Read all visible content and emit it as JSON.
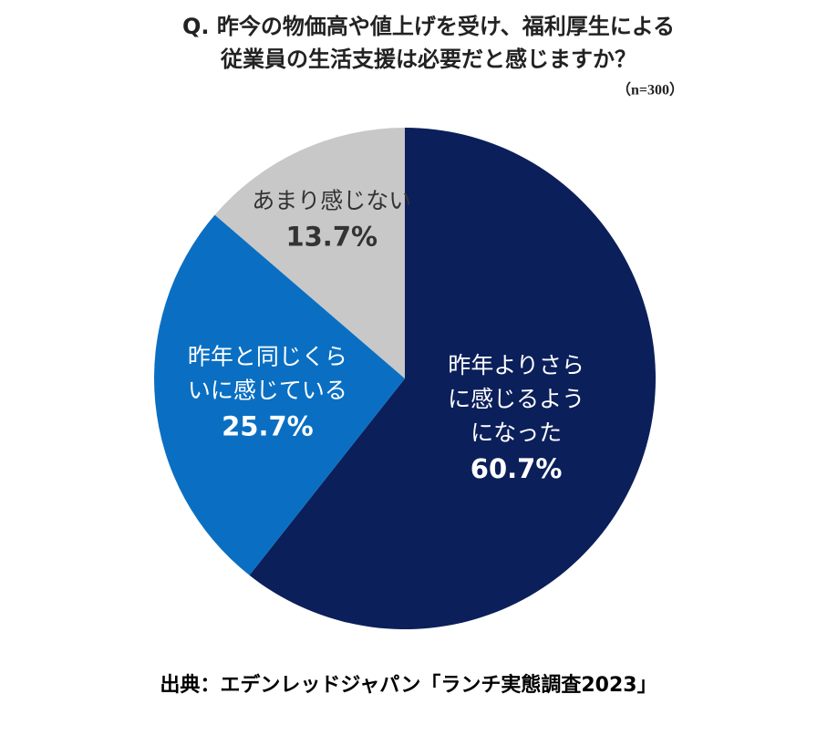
{
  "chart_data": {
    "type": "pie",
    "title": [
      "Q. 昨今の物価高や値上げを受け、福利厚生による",
      "従業員の生活支援は必要だと感じますか？"
    ],
    "subtitle": "（n=300）",
    "categories": [
      [
        "昨年よりさら",
        "に感じるよう",
        "になった"
      ],
      [
        "昨年と同じくら",
        "いに感じている"
      ],
      [
        "あまり感じない"
      ]
    ],
    "values": [
      60.7,
      25.7,
      13.7
    ],
    "value_labels": [
      "60.7%",
      "25.7%",
      "13.7%"
    ],
    "colors": [
      "#0b1f5a",
      "#0a6fc2",
      "#c8c8c8"
    ],
    "label_colors": [
      "#ffffff",
      "#ffffff",
      "#333333"
    ],
    "source": "出典：エデンレッドジャパン「ランチ実態調査2023」"
  }
}
